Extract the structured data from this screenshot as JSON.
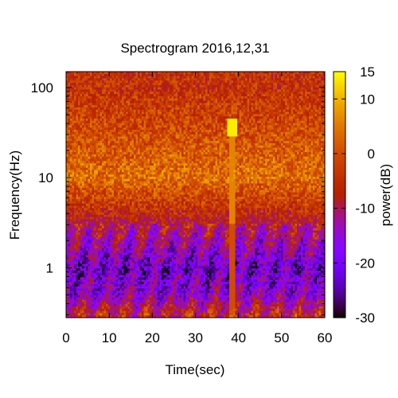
{
  "chart_data": {
    "type": "heatmap",
    "title": "Spectrogram 2016,12,31",
    "xlabel": "Time(sec)",
    "ylabel": "Frequency(Hz)",
    "colorbar_label": "power(dB)",
    "x_range": [
      0,
      60
    ],
    "y_range": [
      0.28,
      150
    ],
    "y_scale": "log",
    "x_ticks": [
      "0",
      "10",
      "20",
      "30",
      "40",
      "50",
      "60"
    ],
    "x_tick_values": [
      0,
      10,
      20,
      30,
      40,
      50,
      60
    ],
    "y_ticks": [
      "1",
      "10",
      "100"
    ],
    "y_tick_values": [
      1,
      10,
      100
    ],
    "colorbar_range": [
      -30,
      15
    ],
    "colorbar_ticks": [
      "15",
      "10",
      "0",
      "-10",
      "-20",
      "-30"
    ],
    "colorbar_tick_values": [
      15,
      10,
      0,
      -10,
      -20,
      -30
    ],
    "colormap": "gnuplot-pm3d (black-purple-red-orange-yellow)",
    "power_profile_db": [
      {
        "freq_hz": 0.3,
        "power_db": -6
      },
      {
        "freq_hz": 0.5,
        "power_db": -16
      },
      {
        "freq_hz": 1,
        "power_db": -21
      },
      {
        "freq_hz": 2,
        "power_db": -13
      },
      {
        "freq_hz": 5,
        "power_db": -3
      },
      {
        "freq_hz": 10,
        "power_db": 4
      },
      {
        "freq_hz": 30,
        "power_db": 0
      },
      {
        "freq_hz": 100,
        "power_db": -4
      },
      {
        "freq_hz": 150,
        "power_db": -4
      }
    ],
    "events": [
      {
        "time_sec": 38.5,
        "freq_range_hz": [
          0.3,
          40
        ],
        "power_db": 6
      },
      {
        "time_sec": 38.5,
        "freq_hz": 35,
        "power_db": 14
      }
    ]
  }
}
